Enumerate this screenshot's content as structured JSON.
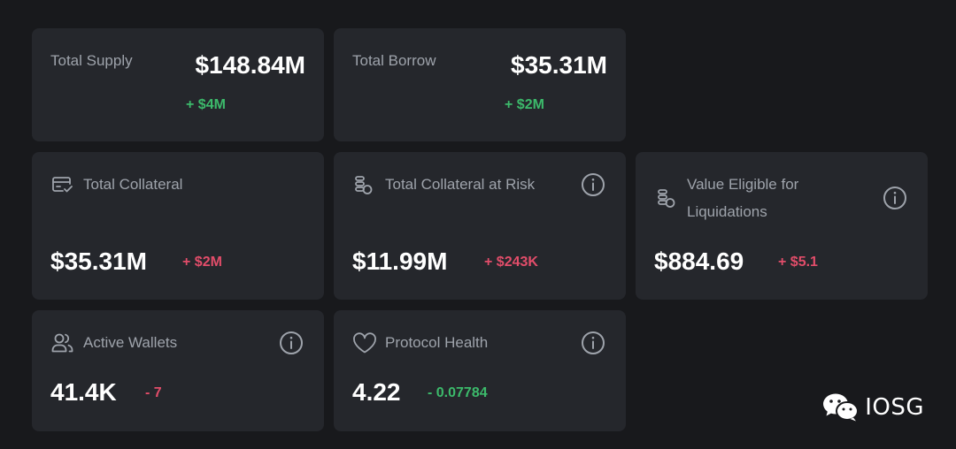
{
  "cards": {
    "total_supply": {
      "label": "Total Supply",
      "value": "$148.84M",
      "delta": "+ $4M"
    },
    "total_borrow": {
      "label": "Total Borrow",
      "value": "$35.31M",
      "delta": "+ $2M"
    },
    "total_collateral": {
      "label": "Total Collateral",
      "value": "$35.31M",
      "delta": "+ $2M",
      "icon": "card-check-icon"
    },
    "collateral_at_risk": {
      "label": "Total Collateral at Risk",
      "value": "$11.99M",
      "delta": "+ $243K",
      "icon": "coins-icon"
    },
    "value_eligible": {
      "label_line1": "Value Eligible for",
      "label_line2": "Liquidations",
      "value": "$884.69",
      "delta": "+ $5.1",
      "icon": "coins-icon"
    },
    "active_wallets": {
      "label": "Active Wallets",
      "value": "41.4K",
      "delta": "- 7",
      "icon": "users-icon"
    },
    "protocol_health": {
      "label": "Protocol Health",
      "value": "4.22",
      "delta": "- 0.07784",
      "icon": "heart-icon"
    }
  },
  "watermark": {
    "text": "IOSG",
    "icon": "wechat-icon"
  },
  "colors": {
    "background": "#18191c",
    "card": "#25272c",
    "label": "#9ea3ab",
    "positive": "#3cba6b",
    "negative": "#e24d6a"
  }
}
